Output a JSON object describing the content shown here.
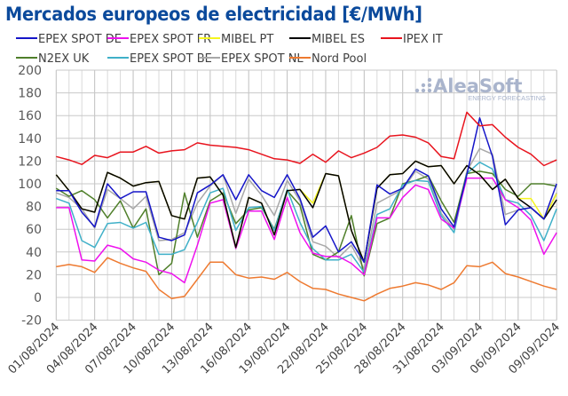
{
  "chart_data": {
    "type": "line",
    "title": "Mercados europeos de electricidad [€/MWh]",
    "xlabel": "",
    "ylabel": "",
    "ylim": [
      -20,
      200
    ],
    "yticks": [
      -20,
      0,
      20,
      40,
      60,
      80,
      100,
      120,
      140,
      160,
      180,
      200
    ],
    "grid": true,
    "legend_placement": "top",
    "x": [
      "01/08/2024",
      "02/08/2024",
      "03/08/2024",
      "04/08/2024",
      "05/08/2024",
      "06/08/2024",
      "07/08/2024",
      "08/08/2024",
      "09/08/2024",
      "10/08/2024",
      "11/08/2024",
      "12/08/2024",
      "13/08/2024",
      "14/08/2024",
      "15/08/2024",
      "16/08/2024",
      "17/08/2024",
      "18/08/2024",
      "19/08/2024",
      "20/08/2024",
      "21/08/2024",
      "22/08/2024",
      "23/08/2024",
      "24/08/2024",
      "25/08/2024",
      "26/08/2024",
      "27/08/2024",
      "28/08/2024",
      "29/08/2024",
      "30/08/2024",
      "31/08/2024",
      "01/09/2024",
      "02/09/2024",
      "03/09/2024",
      "04/09/2024",
      "05/09/2024",
      "06/09/2024",
      "07/09/2024",
      "08/09/2024",
      "09/09/2024"
    ],
    "xtick_labels": [
      "01/08/2024",
      "04/08/2024",
      "07/08/2024",
      "10/08/2024",
      "13/08/2024",
      "16/08/2024",
      "19/08/2024",
      "22/08/2024",
      "25/08/2024",
      "28/08/2024",
      "31/08/2024",
      "03/09/2024",
      "06/09/2024",
      "09/09/2024"
    ],
    "series": [
      {
        "name": "EPEX SPOT DE",
        "color": "#1515c8",
        "values": [
          94,
          94,
          75,
          62,
          100,
          87,
          93,
          93,
          53,
          50,
          55,
          92,
          99,
          108,
          86,
          108,
          94,
          88,
          108,
          87,
          53,
          63,
          40,
          49,
          31,
          99,
          91,
          96,
          113,
          107,
          78,
          62,
          108,
          158,
          124,
          64,
          77,
          79,
          69,
          100
        ]
      },
      {
        "name": "EPEX SPOT FR",
        "color": "#ee11ee",
        "values": [
          79,
          79,
          33,
          32,
          46,
          43,
          34,
          31,
          24,
          21,
          13,
          46,
          83,
          86,
          43,
          76,
          76,
          51,
          88,
          57,
          39,
          36,
          36,
          30,
          20,
          70,
          70,
          88,
          99,
          95,
          69,
          61,
          105,
          105,
          105,
          86,
          79,
          68,
          38,
          57
        ]
      },
      {
        "name": "MIBEL PT",
        "color": "#f5f51e",
        "values": [
          108,
          94,
          78,
          75,
          110,
          105,
          98,
          101,
          102,
          72,
          69,
          105,
          106,
          90,
          44,
          88,
          83,
          55,
          94,
          95,
          83,
          109,
          107,
          59,
          31,
          96,
          108,
          109,
          120,
          115,
          116,
          100,
          116,
          108,
          95,
          104,
          87,
          87,
          69,
          91
        ]
      },
      {
        "name": "MIBEL ES",
        "color": "#000000",
        "values": [
          108,
          94,
          78,
          75,
          110,
          105,
          98,
          101,
          102,
          72,
          69,
          105,
          106,
          90,
          44,
          88,
          83,
          55,
          94,
          95,
          79,
          109,
          107,
          59,
          31,
          96,
          108,
          109,
          120,
          115,
          116,
          100,
          116,
          108,
          95,
          104,
          87,
          79,
          69,
          86
        ]
      },
      {
        "name": "IPEX IT",
        "color": "#e8141e",
        "values": [
          124,
          121,
          117,
          125,
          123,
          128,
          128,
          133,
          127,
          129,
          130,
          136,
          134,
          133,
          132,
          130,
          126,
          122,
          121,
          118,
          126,
          119,
          129,
          123,
          127,
          132,
          142,
          143,
          141,
          136,
          124,
          122,
          163,
          151,
          152,
          141,
          132,
          126,
          116,
          121
        ]
      },
      {
        "name": "N2EX UK",
        "color": "#4f7f2a",
        "values": [
          96,
          89,
          94,
          86,
          70,
          85,
          61,
          78,
          20,
          30,
          92,
          53,
          85,
          92,
          65,
          77,
          79,
          60,
          94,
          81,
          38,
          33,
          40,
          72,
          19,
          65,
          70,
          100,
          103,
          107,
          85,
          66,
          109,
          111,
          109,
          95,
          89,
          100,
          100,
          98
        ]
      },
      {
        "name": "EPEX SPOT BE",
        "color": "#3fb0c8",
        "values": [
          87,
          83,
          50,
          44,
          65,
          66,
          61,
          66,
          38,
          38,
          42,
          66,
          92,
          96,
          59,
          79,
          80,
          59,
          95,
          66,
          43,
          33,
          33,
          38,
          22,
          73,
          78,
          99,
          103,
          102,
          72,
          57,
          109,
          119,
          113,
          86,
          83,
          72,
          50,
          78
        ]
      },
      {
        "name": "EPEX SPOT NL",
        "color": "#a8a8a8",
        "values": [
          92,
          88,
          78,
          61,
          95,
          87,
          78,
          89,
          50,
          51,
          57,
          83,
          98,
          108,
          74,
          104,
          90,
          72,
          103,
          85,
          49,
          45,
          35,
          46,
          25,
          83,
          89,
          95,
          111,
          104,
          74,
          60,
          111,
          131,
          126,
          73,
          77,
          79,
          69,
          92
        ]
      },
      {
        "name": "Nord Pool",
        "color": "#ee7a30",
        "values": [
          27,
          29,
          27,
          22,
          35,
          30,
          26,
          23,
          7,
          -1,
          1,
          16,
          31,
          31,
          20,
          17,
          18,
          16,
          22,
          14,
          8,
          7,
          3,
          0,
          -3,
          3,
          8,
          10,
          13,
          11,
          7,
          13,
          28,
          27,
          31,
          21,
          18,
          14,
          10,
          7
        ]
      }
    ]
  },
  "watermark": {
    "brand": "AleaSoft",
    "tagline": "ENERGY FORECASTING"
  }
}
